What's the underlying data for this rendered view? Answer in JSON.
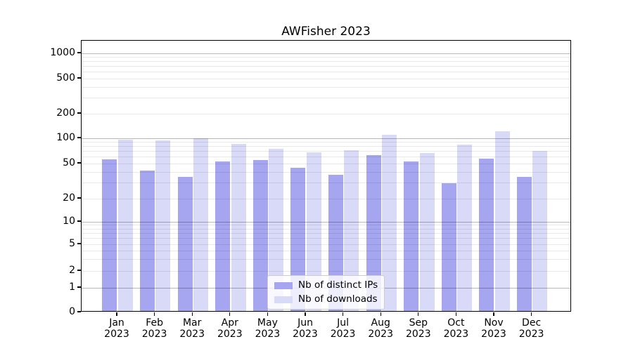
{
  "chart_data": {
    "type": "bar",
    "title": "AWFisher 2023",
    "categories": [
      "Jan",
      "Feb",
      "Mar",
      "Apr",
      "May",
      "Jun",
      "Jul",
      "Aug",
      "Sep",
      "Oct",
      "Nov",
      "Dec"
    ],
    "year_label": "2023",
    "series": [
      {
        "name": "Nb of distinct IPs",
        "color": "#a5a5f0",
        "values": [
          54,
          40,
          34,
          51,
          53,
          43,
          36,
          61,
          51,
          29,
          55,
          34
        ]
      },
      {
        "name": "Nb of downloads",
        "color": "#d9d9f8",
        "values": [
          93,
          91,
          97,
          83,
          72,
          65,
          70,
          107,
          64,
          81,
          118,
          68
        ]
      }
    ],
    "yticks": [
      0,
      1,
      2,
      5,
      10,
      20,
      50,
      100,
      200,
      500,
      1000
    ],
    "yscale": "symlog",
    "ylim": [
      0,
      1000
    ],
    "grid": true,
    "legend_position": "lower center",
    "xlabel": "",
    "ylabel": ""
  }
}
